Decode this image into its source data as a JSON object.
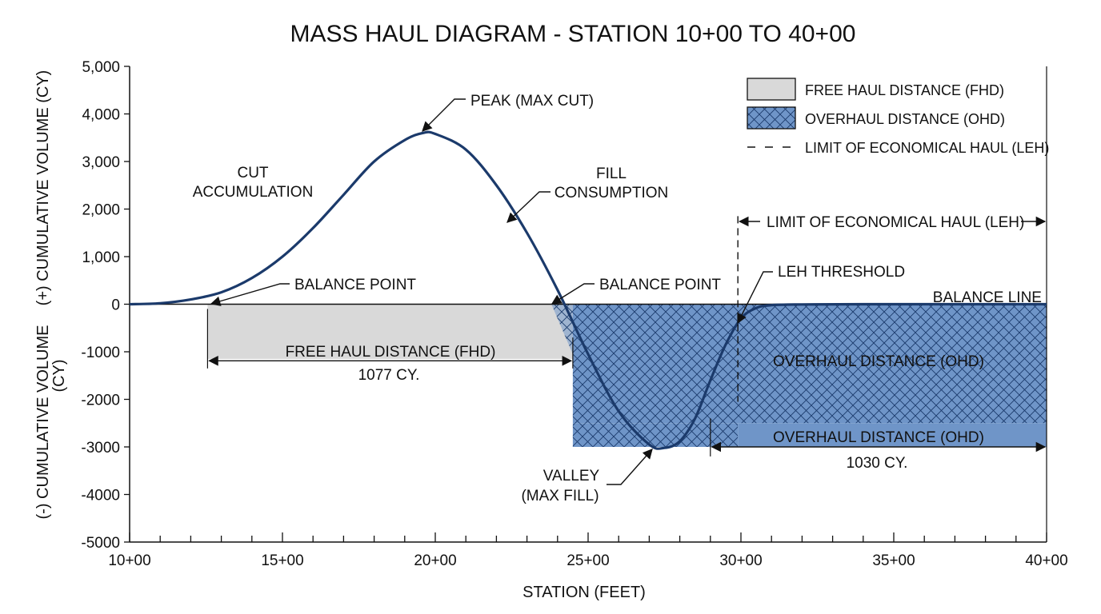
{
  "chart_data": {
    "type": "line",
    "title": "MASS HAUL DIAGRAM - STATION 10+00 TO 40+00",
    "xlabel": "STATION (FEET)",
    "ylabel_pos": "(+) CUMULATIVE VOLUME (CY)",
    "ylabel_neg_line1": "(-) CUMULATIVE VOLUME",
    "ylabel_neg_line2": "(CY)",
    "xlim": [
      1000,
      4000
    ],
    "ylim": [
      -5000,
      5000
    ],
    "x_ticks": [
      {
        "value": 1000,
        "label": "10+00"
      },
      {
        "value": 1500,
        "label": "15+00"
      },
      {
        "value": 2000,
        "label": "20+00"
      },
      {
        "value": 2500,
        "label": "25+00"
      },
      {
        "value": 3000,
        "label": "30+00"
      },
      {
        "value": 3500,
        "label": "35+00"
      },
      {
        "value": 4000,
        "label": "40+00"
      }
    ],
    "y_ticks": [
      {
        "value": 5000,
        "label": "5,000"
      },
      {
        "value": 4000,
        "label": "4,000"
      },
      {
        "value": 3000,
        "label": "3,000"
      },
      {
        "value": 2000,
        "label": "2,000"
      },
      {
        "value": 1000,
        "label": "1,000"
      },
      {
        "value": 0,
        "label": "0"
      },
      {
        "value": -1000,
        "label": "-1000"
      },
      {
        "value": -2000,
        "label": "-2000"
      },
      {
        "value": -3000,
        "label": "-3000"
      },
      {
        "value": -4000,
        "label": "-4000"
      },
      {
        "value": -5000,
        "label": "-5000"
      }
    ],
    "series": [
      {
        "color": "#1b3a6b",
        "x": [
          1000,
          1100,
          1200,
          1300,
          1400,
          1500,
          1600,
          1700,
          1800,
          1900,
          1960,
          2000,
          2100,
          2200,
          2300,
          2400,
          2500,
          2600,
          2700,
          2750,
          2800,
          2850,
          2900,
          2950,
          3000,
          3050,
          3100,
          3200,
          3400,
          3700,
          4000
        ],
        "y": [
          0,
          20,
          100,
          250,
          550,
          1000,
          1600,
          2300,
          3000,
          3450,
          3600,
          3580,
          3250,
          2500,
          1500,
          300,
          -1050,
          -2250,
          -2950,
          -3020,
          -2880,
          -2400,
          -1600,
          -850,
          -300,
          -80,
          -20,
          -5,
          0,
          0,
          0
        ]
      }
    ],
    "regions": [
      {
        "kind": "fhd",
        "x0": 1255,
        "x1": 2450,
        "y0": 0,
        "y1": -1150
      },
      {
        "kind": "ohd_hatched_top",
        "x0": 2450,
        "x1": 4000,
        "y0": 0,
        "y1": -2500
      },
      {
        "kind": "ohd_hatched_trough",
        "x0": 2450,
        "x1": 2990,
        "y0": -2500,
        "y1": -3000
      },
      {
        "kind": "ohd_solid_band",
        "x0": 2990,
        "x1": 4000,
        "y0": -2500,
        "y1": -3000
      }
    ],
    "leh_line_x": 2990,
    "balance_line_y": 0,
    "annotations": {
      "peak": "PEAK (MAX CUT)",
      "cut_1": "CUT",
      "cut_2": "ACCUMULATION",
      "fill_1": "FILL",
      "fill_2": "CONSUMPTION",
      "balance_point_1": "BALANCE POINT",
      "balance_point_2": "BALANCE POINT",
      "balance_line": "BALANCE LINE",
      "leh_threshold": "LEH THRESHOLD",
      "leh_span": "LIMIT OF ECONOMICAL HAUL (LEH)",
      "fhd_label": "FREE HAUL DISTANCE (FHD)",
      "fhd_value": "1077 CY.",
      "ohd_label_top": "OVERHAUL DISTANCE (OHD)",
      "ohd_label_band": "OVERHAUL DISTANCE (OHD)",
      "ohd_value": "1030 CY.",
      "valley_1": "VALLEY",
      "valley_2": "(MAX FILL)"
    },
    "legend": {
      "position": "top-right",
      "items": [
        {
          "kind": "fhd",
          "label": "FREE HAUL DISTANCE (FHD)"
        },
        {
          "kind": "ohd",
          "label": "OVERHAUL DISTANCE (OHD)"
        },
        {
          "kind": "leh",
          "label": "LIMIT OF ECONOMICAL HAUL (LEH)"
        }
      ]
    },
    "colors": {
      "curve": "#1b3a6b",
      "fhd_fill": "#d9d9d9",
      "ohd_fill": "#6f95c8",
      "hatch": "#1b3a6b"
    }
  }
}
